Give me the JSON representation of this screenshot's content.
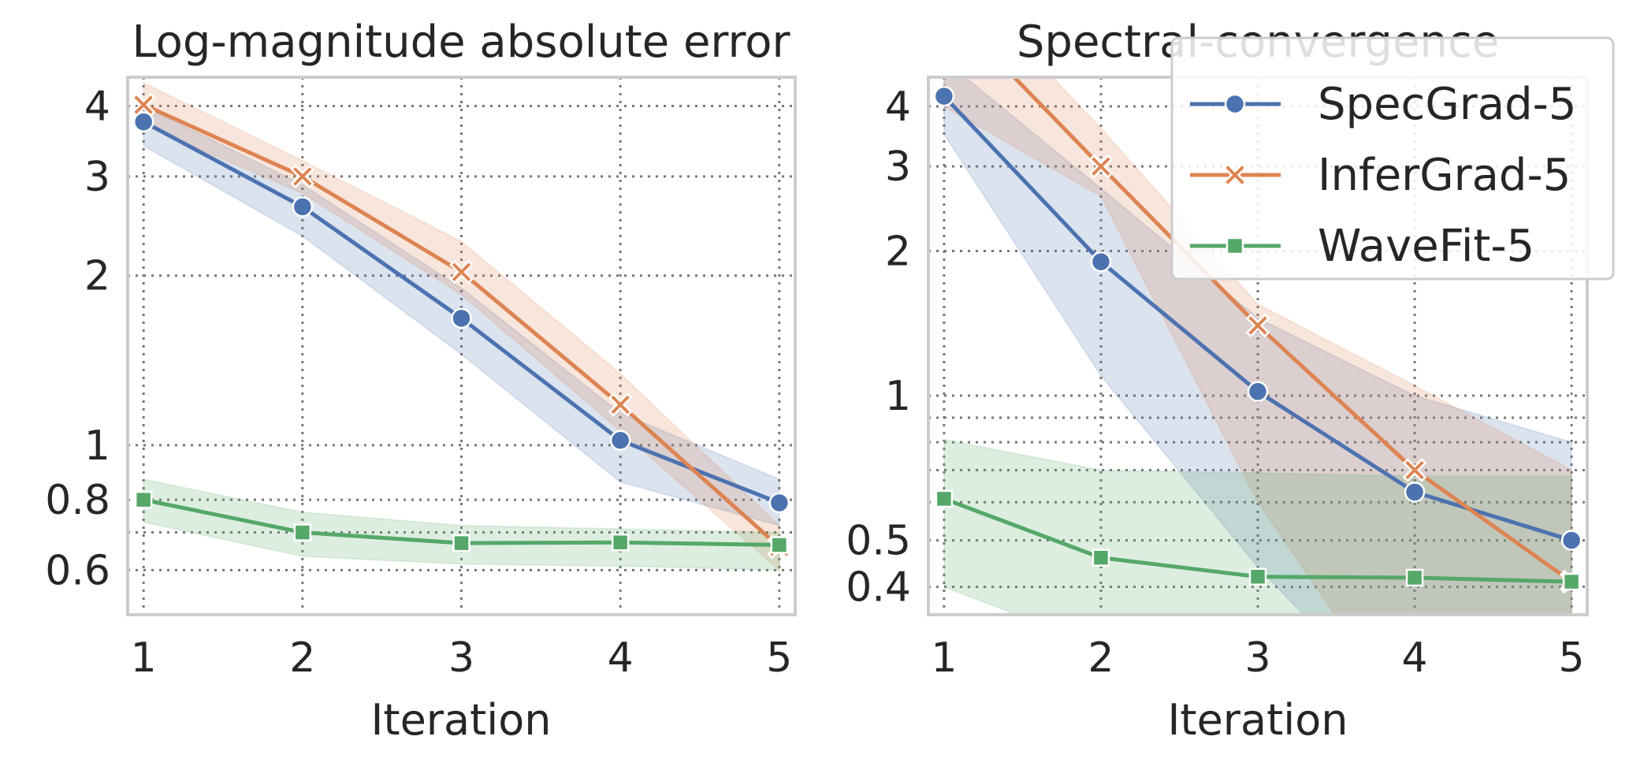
{
  "chart_data": [
    {
      "type": "line",
      "title": "Log-magnitude absolute error",
      "xlabel": "Iteration",
      "ylabel": "",
      "yscale": "log",
      "grid": true,
      "x": [
        1,
        2,
        3,
        4,
        5
      ],
      "xticks": [
        "1",
        "2",
        "3",
        "4",
        "5"
      ],
      "xlim": [
        0.9,
        5.1
      ],
      "ylim": [
        0.5,
        4.5
      ],
      "yticks": [
        {
          "value": 4,
          "label": "4"
        },
        {
          "value": 3,
          "label": "3"
        },
        {
          "value": 2,
          "label": "2"
        },
        {
          "value": 1,
          "label": "1"
        },
        {
          "value": 0.8,
          "label": "0.8"
        },
        {
          "value": 0.6,
          "label": "0.6"
        }
      ],
      "extra_grid": [
        0.7
      ],
      "series": [
        {
          "name": "SpecGrad-5",
          "color": "#4c72b0",
          "marker": "circle",
          "values": [
            3.75,
            2.65,
            1.68,
            1.02,
            0.79
          ],
          "band_low": [
            3.4,
            2.35,
            1.45,
            0.86,
            0.72
          ],
          "band_high": [
            4.0,
            2.9,
            1.9,
            1.14,
            0.87
          ]
        },
        {
          "name": "InferGrad-5",
          "color": "#dd8452",
          "marker": "x",
          "values": [
            4.02,
            3.0,
            2.03,
            1.18,
            0.66
          ],
          "band_low": [
            3.7,
            2.8,
            1.85,
            1.06,
            0.6
          ],
          "band_high": [
            4.4,
            3.2,
            2.3,
            1.34,
            0.72
          ]
        },
        {
          "name": "WaveFit-5",
          "color": "#55a868",
          "marker": "square",
          "values": [
            0.8,
            0.7,
            0.67,
            0.672,
            0.665
          ],
          "band_low": [
            0.73,
            0.635,
            0.615,
            0.61,
            0.6
          ],
          "band_high": [
            0.87,
            0.76,
            0.72,
            0.71,
            0.7
          ]
        }
      ]
    },
    {
      "type": "line",
      "title": "Spectral-convergence",
      "xlabel": "Iteration",
      "ylabel": "",
      "yscale": "log",
      "grid": true,
      "x": [
        1,
        2,
        3,
        4,
        5
      ],
      "xticks": [
        "1",
        "2",
        "3",
        "4",
        "5"
      ],
      "xlim": [
        0.9,
        5.1
      ],
      "ylim": [
        0.35,
        4.6
      ],
      "yticks": [
        {
          "value": 4,
          "label": "4"
        },
        {
          "value": 3,
          "label": "3"
        },
        {
          "value": 2,
          "label": "2"
        },
        {
          "value": 1,
          "label": "1"
        },
        {
          "value": 0.5,
          "label": "0.5"
        },
        {
          "value": 0.4,
          "label": "0.4"
        }
      ],
      "extra_grid": [
        0.9,
        0.8,
        0.7,
        0.6
      ],
      "legend": "top-right",
      "series": [
        {
          "name": "SpecGrad-5",
          "color": "#4c72b0",
          "marker": "circle",
          "values": [
            4.2,
            1.9,
            1.02,
            0.63,
            0.5
          ],
          "band_low": [
            3.5,
            1.1,
            0.44,
            0.2,
            0.2
          ],
          "band_high": [
            5.0,
            2.7,
            1.45,
            1.0,
            0.8
          ]
        },
        {
          "name": "InferGrad-5",
          "color": "#dd8452",
          "marker": "x",
          "values": [
            6.5,
            3.0,
            1.4,
            0.7,
            0.41
          ],
          "band_low": [
            4.0,
            2.6,
            0.6,
            0.2,
            0.2
          ],
          "band_high": [
            8.0,
            3.6,
            1.55,
            1.05,
            0.7
          ]
        },
        {
          "name": "WaveFit-5",
          "color": "#55a868",
          "marker": "square",
          "values": [
            0.61,
            0.46,
            0.42,
            0.418,
            0.41
          ],
          "band_low": [
            0.4,
            0.3,
            0.3,
            0.3,
            0.3
          ],
          "band_high": [
            0.81,
            0.7,
            0.69,
            0.68,
            0.68
          ]
        }
      ]
    }
  ],
  "legend": {
    "items": [
      {
        "label": "SpecGrad-5",
        "color": "#4c72b0",
        "marker": "circle"
      },
      {
        "label": "InferGrad-5",
        "color": "#dd8452",
        "marker": "x"
      },
      {
        "label": "WaveFit-5",
        "color": "#55a868",
        "marker": "square"
      }
    ]
  }
}
